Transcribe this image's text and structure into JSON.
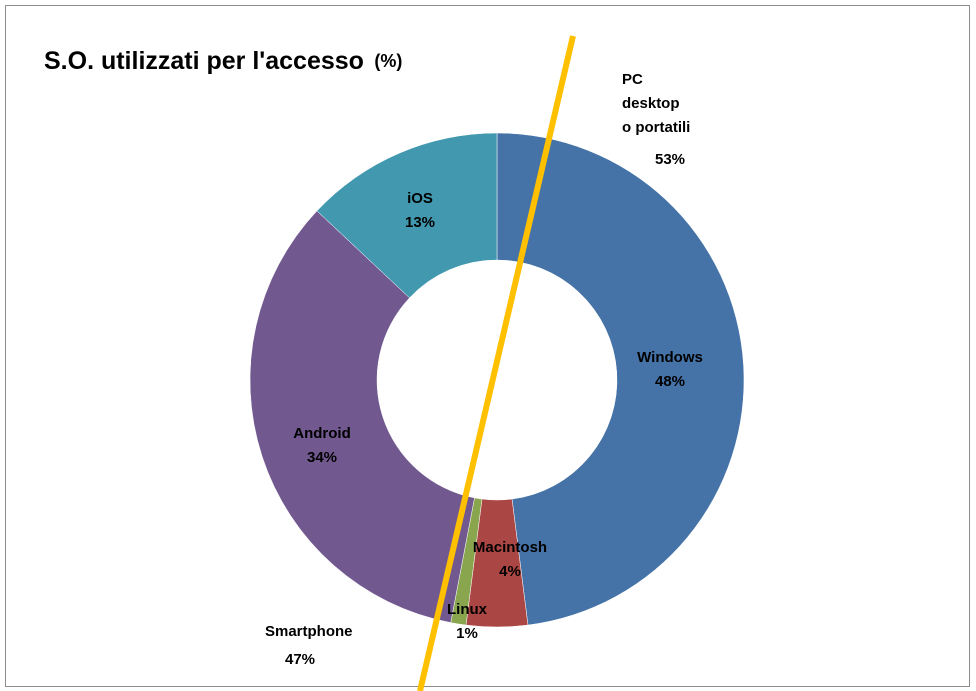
{
  "chart_data": {
    "type": "donut",
    "title": "S.O. utilizzati  per l'accesso",
    "title_unit": "(%)",
    "categories": [
      "Windows",
      "Macintosh",
      "Linux",
      "Android",
      "iOS"
    ],
    "values": [
      48,
      4,
      1,
      34,
      13
    ],
    "value_labels": [
      "48%",
      "4%",
      "1%",
      "34%",
      "13%"
    ],
    "colors": [
      "#4572a7",
      "#aa4643",
      "#89a54e",
      "#71588f",
      "#4198af"
    ],
    "groups": [
      {
        "label": [
          "PC",
          "desktop",
          "o portatili"
        ],
        "value": 53,
        "value_label": "53%"
      },
      {
        "label": [
          "Smartphone"
        ],
        "value": 47,
        "value_label": "47%"
      }
    ]
  }
}
